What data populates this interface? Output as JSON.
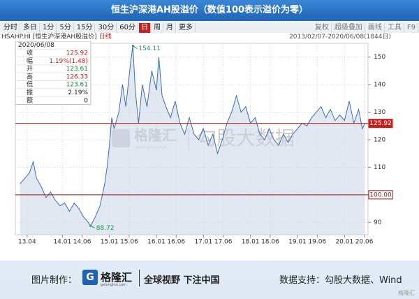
{
  "header": {
    "title": "恒生沪深港AH股溢价（数值100表示溢价为零）"
  },
  "toolbar": {
    "left": [
      "分时",
      "多日",
      "1分",
      "5分",
      "15分",
      "30分",
      "60分",
      "日",
      "周",
      "月",
      "更多"
    ],
    "active": 7,
    "right": [
      "复权",
      "超级叠加",
      "画线",
      "工具",
      "F9"
    ]
  },
  "infoline": {
    "code": "HSAHP.HI [恒生沪深港AH股溢价]",
    "period": "日线",
    "range": "2013/02/07-2020/06/08(1844日)"
  },
  "info_box": {
    "date": "2020/06/08",
    "rows": [
      {
        "label": "收",
        "value": "125.92",
        "color": "#d01c1c"
      },
      {
        "label": "幅",
        "value": "1.19%(1.48)",
        "color": "#d01c1c"
      },
      {
        "label": "开",
        "value": "123.61",
        "color": "#138a36"
      },
      {
        "label": "高",
        "value": "126.33",
        "color": "#d01c1c"
      },
      {
        "label": "低",
        "value": "123.61",
        "color": "#138a36"
      },
      {
        "label": "振",
        "value": "2.19%",
        "color": "#222222"
      },
      {
        "label": "额",
        "value": "0",
        "color": "#222222"
      }
    ]
  },
  "chart_data": {
    "type": "line",
    "color": "#3a6fb0",
    "area_color": "#c8d6e6",
    "grid": true,
    "x": [
      2013.1,
      2013.2,
      2013.3,
      2013.38,
      2013.45,
      2013.55,
      2013.65,
      2013.75,
      2013.85,
      2013.95,
      2014.05,
      2014.15,
      2014.25,
      2014.35,
      2014.45,
      2014.55,
      2014.6,
      2014.7,
      2014.8,
      2014.9,
      2014.95,
      2015.0,
      2015.05,
      2015.1,
      2015.2,
      2015.28,
      2015.35,
      2015.45,
      2015.5,
      2015.55,
      2015.62,
      2015.7,
      2015.8,
      2015.9,
      2016.0,
      2016.05,
      2016.12,
      2016.2,
      2016.3,
      2016.4,
      2016.5,
      2016.6,
      2016.7,
      2016.8,
      2016.9,
      2017.0,
      2017.1,
      2017.2,
      2017.3,
      2017.4,
      2017.5,
      2017.6,
      2017.7,
      2017.8,
      2017.9,
      2018.0,
      2018.1,
      2018.2,
      2018.3,
      2018.4,
      2018.5,
      2018.6,
      2018.7,
      2018.8,
      2018.9,
      2019.0,
      2019.1,
      2019.2,
      2019.3,
      2019.4,
      2019.5,
      2019.6,
      2019.7,
      2019.8,
      2019.9,
      2020.0,
      2020.1,
      2020.2,
      2020.3,
      2020.38,
      2020.43
    ],
    "values": [
      104,
      106,
      108,
      112,
      106,
      103,
      99,
      101,
      98,
      96,
      97,
      94,
      97,
      95,
      92,
      90,
      88.72,
      92,
      96,
      104,
      110,
      118,
      128,
      124,
      130,
      140,
      132,
      148,
      154.11,
      138,
      126,
      140,
      132,
      145,
      138,
      150,
      136,
      132,
      128,
      134,
      126,
      122,
      128,
      122,
      120,
      124,
      118,
      122,
      115,
      120,
      126,
      130,
      136,
      130,
      132,
      126,
      128,
      122,
      120,
      124,
      120,
      118,
      122,
      119,
      122,
      124,
      126,
      125,
      128,
      130,
      132,
      128,
      131,
      127,
      129,
      127,
      134,
      126,
      131,
      124,
      125.92
    ],
    "xlim": [
      2013.0,
      2020.5
    ],
    "ylim": [
      85.5,
      155
    ],
    "xticks": [
      {
        "value": 2013.25,
        "label": "13.04"
      },
      {
        "value": 2014.0,
        "label": "14.01"
      },
      {
        "value": 2014.42,
        "label": "14.06"
      },
      {
        "value": 2015.0,
        "label": "15.01"
      },
      {
        "value": 2015.42,
        "label": "15.06"
      },
      {
        "value": 2016.0,
        "label": "16.01"
      },
      {
        "value": 2016.42,
        "label": "16.06"
      },
      {
        "value": 2017.0,
        "label": "17.01"
      },
      {
        "value": 2017.42,
        "label": "17.06"
      },
      {
        "value": 2018.0,
        "label": "18.01"
      },
      {
        "value": 2018.42,
        "label": "18.06"
      },
      {
        "value": 2019.0,
        "label": "19.01"
      },
      {
        "value": 2019.42,
        "label": "19.06"
      },
      {
        "value": 2020.0,
        "label": "20.01"
      },
      {
        "value": 2020.42,
        "label": "20.06"
      }
    ],
    "yticks": [
      90,
      100,
      110,
      120,
      130,
      140,
      150
    ],
    "ref_lines": [
      {
        "value": 125.92,
        "color": "#c81e1e",
        "filled": true
      },
      {
        "value": 100,
        "label": "100.00",
        "color": "#8a1a1a",
        "filled": false
      }
    ],
    "annotations": [
      {
        "x": 2015.5,
        "value": 154.11,
        "color": "#1a9a4a"
      },
      {
        "x": 2014.6,
        "value": 88.72,
        "color": "#1a9a4a"
      }
    ],
    "watermark": {
      "brand": "格隆汇",
      "site": "gelonghui.com",
      "text": "勾股大数据"
    }
  },
  "footer": {
    "made_by": "图片制作：",
    "logo_letter": "G",
    "logo_name": "格隆汇",
    "logo_site": "gelonghui.com",
    "slogan": "全球视野 下注中国",
    "source": "数据支持：勾股大数据、Wind",
    "corner": "格隆汇"
  }
}
